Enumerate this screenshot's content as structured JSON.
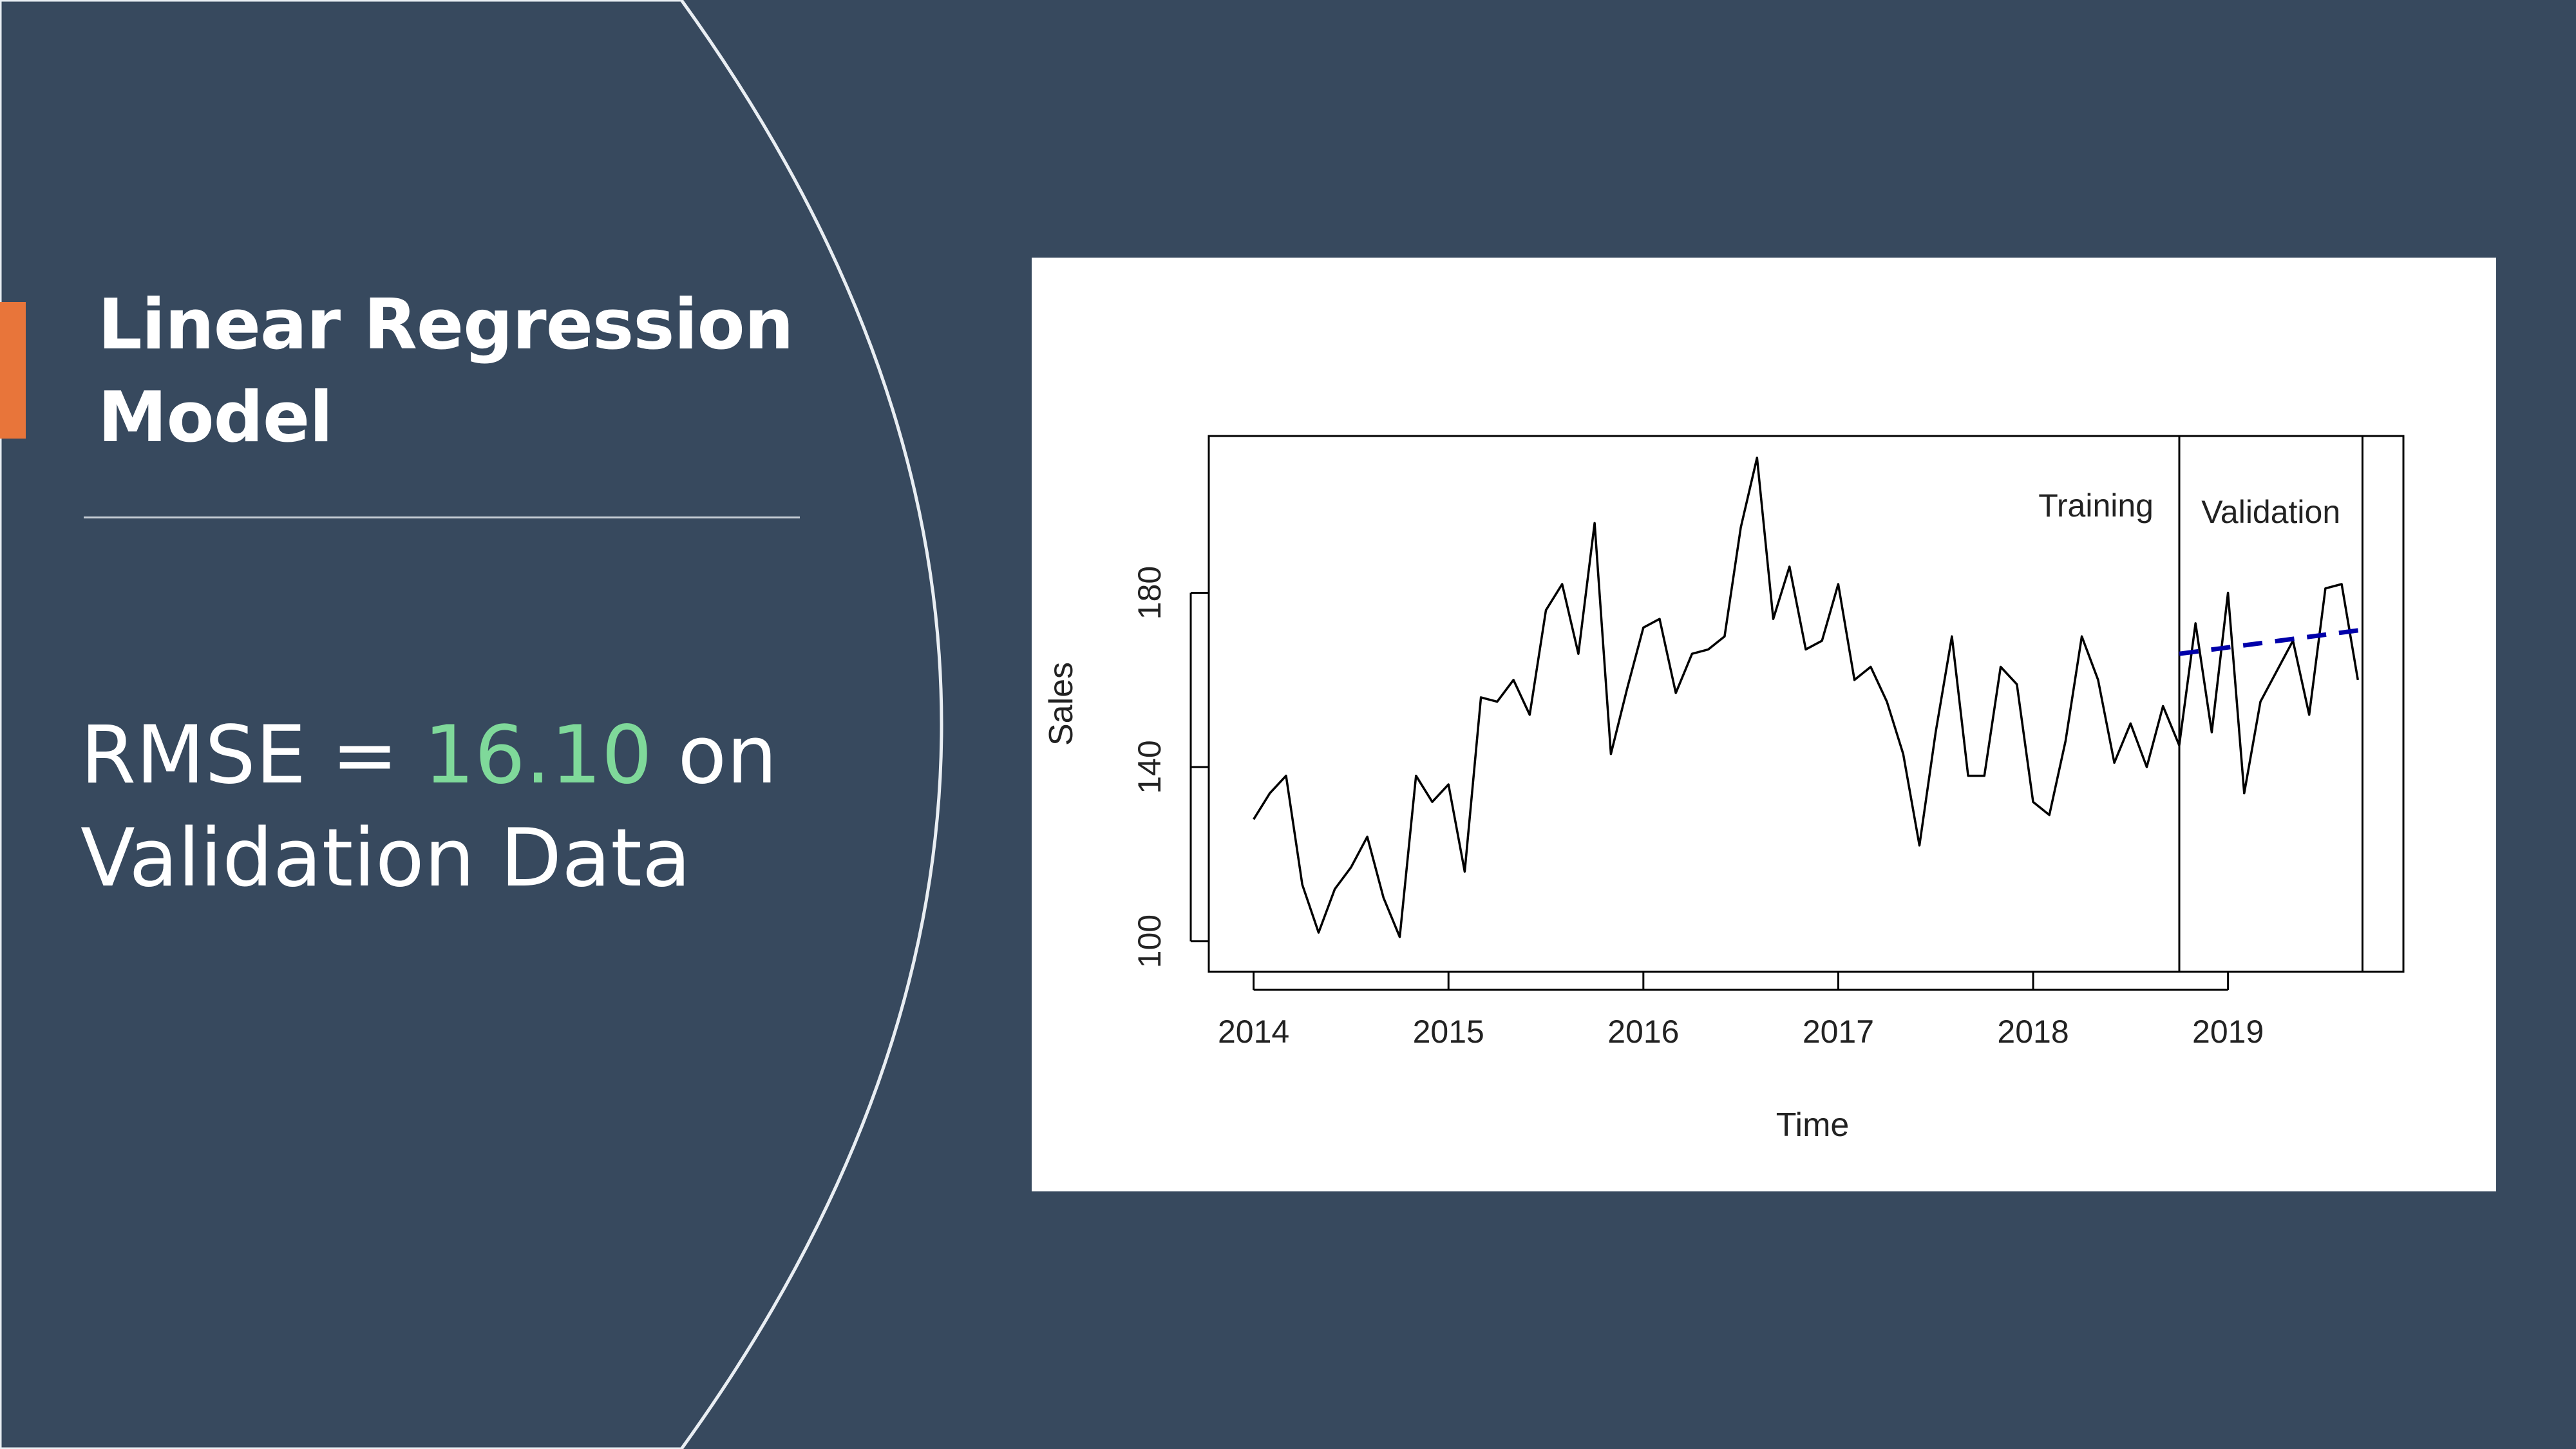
{
  "slide": {
    "title_line1": "Linear Regression",
    "title_line2": "Model",
    "rmse_prefix": "RMSE = ",
    "rmse_value": "16.10",
    "rmse_suffix": " on",
    "rmse_line2": "Validation Data"
  },
  "colors": {
    "background": "#37495e",
    "accent": "#e8753a",
    "rmse_highlight": "#7fd99a",
    "series_actual": "#000000",
    "series_forecast": "#0000aa"
  },
  "chart_data": {
    "type": "line",
    "xlabel": "Time",
    "ylabel": "Sales",
    "xlim": [
      2013.77,
      2019.9
    ],
    "ylim": [
      93,
      216
    ],
    "x_ticks": [
      2014,
      2015,
      2016,
      2017,
      2018,
      2019
    ],
    "y_ticks": [
      100,
      140,
      180
    ],
    "grid": false,
    "partitions": [
      {
        "label": "Training",
        "boundary_x": 2018.75
      },
      {
        "label": "Validation",
        "boundary_x": 2019.69
      }
    ],
    "series": [
      {
        "style": "solid-black",
        "start": 2014.0,
        "step": 0.08333,
        "values": [
          128,
          134,
          138,
          113,
          102,
          112,
          117,
          124,
          110,
          101,
          138,
          132,
          136,
          116,
          156,
          155,
          160,
          152,
          176,
          182,
          166,
          196,
          143,
          158,
          172,
          174,
          157,
          166,
          167,
          170,
          195,
          211,
          174,
          186,
          167,
          169,
          182,
          160,
          163,
          155,
          143,
          122,
          148,
          170,
          138,
          138,
          163,
          159,
          132,
          129,
          146,
          170,
          160,
          141,
          150,
          140,
          154,
          145,
          173,
          148,
          180,
          134,
          155,
          162,
          169,
          152,
          181,
          182,
          160
        ]
      },
      {
        "style": "dashed-blue",
        "x": [
          2018.75,
          2019.69
        ],
        "values": [
          166,
          171.5
        ]
      }
    ]
  }
}
